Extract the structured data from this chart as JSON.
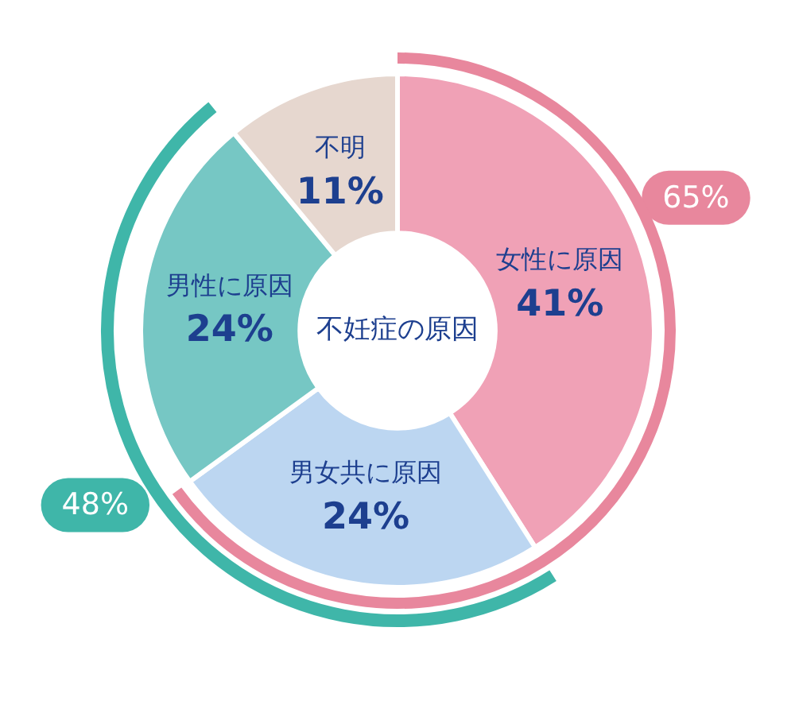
{
  "chart_data": {
    "type": "donut",
    "title": "不妊症の原因",
    "categories": [
      "女性に原因",
      "男女共に原因",
      "男性に原因",
      "不明"
    ],
    "series": [
      {
        "values": [
          41,
          24,
          24,
          11
        ],
        "colors": [
          "#f0a1b6",
          "#bcd6f1",
          "#76c7c4",
          "#e6d7cf"
        ],
        "value_labels": [
          "41%",
          "24%",
          "24%",
          "11%"
        ]
      }
    ],
    "annotations": [
      "65%",
      "48%"
    ]
  }
}
